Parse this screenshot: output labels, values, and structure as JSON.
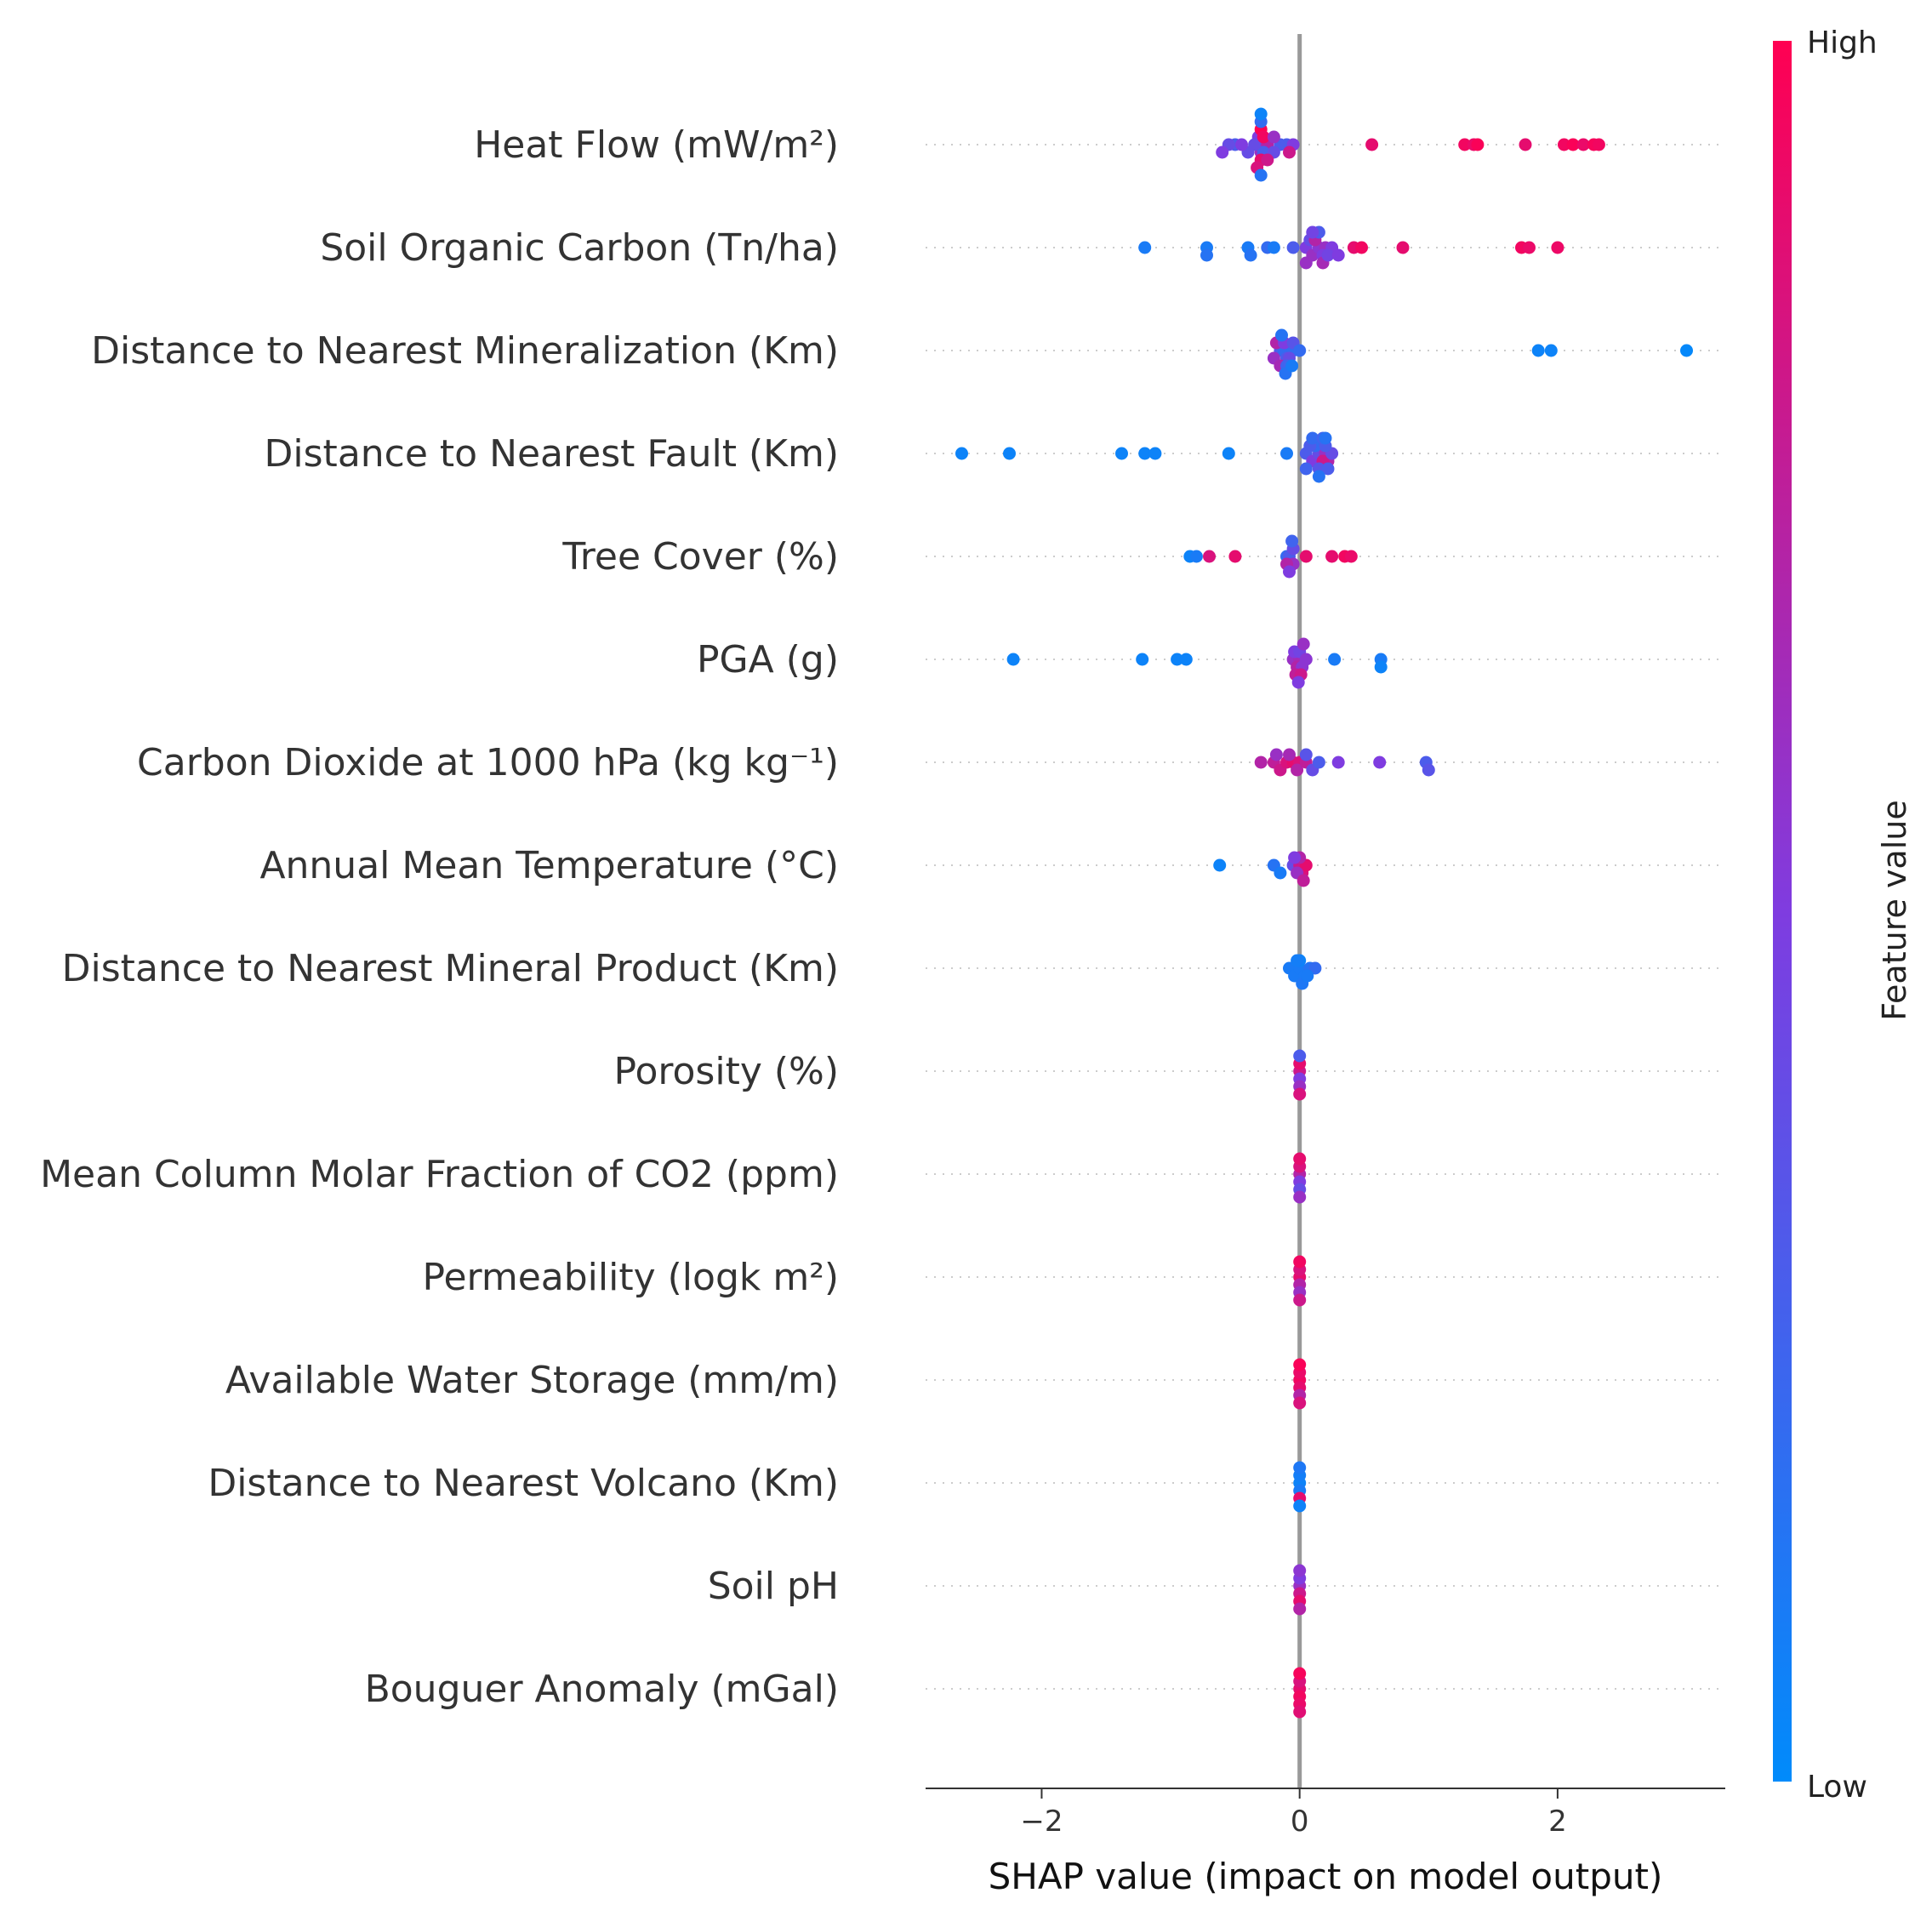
{
  "chart_data": {
    "type": "scatter",
    "subtype": "shap-beeswarm",
    "xlabel": "SHAP value (impact on model output)",
    "xlim": [
      -2.9,
      3.3
    ],
    "xticks": [
      -2,
      0,
      2
    ],
    "xtick_labels": [
      "−2",
      "0",
      "2"
    ],
    "grid": "dotted-row-lines",
    "features": [
      {
        "name": "Heat Flow (mW/m²)",
        "points": [
          [
            -0.3,
            0.5
          ],
          [
            -0.3,
            0.6
          ],
          [
            -0.25,
            0.7
          ],
          [
            -0.32,
            0.5
          ],
          [
            -0.28,
            0.3
          ],
          [
            -0.35,
            0.4
          ],
          [
            -0.4,
            0.4
          ],
          [
            -0.5,
            0.3
          ],
          [
            -0.55,
            0.4
          ],
          [
            -0.6,
            0.5
          ],
          [
            -0.45,
            0.5
          ],
          [
            -0.15,
            0.3
          ],
          [
            -0.1,
            0.3
          ],
          [
            -0.05,
            0.5
          ],
          [
            -0.08,
            0.8
          ],
          [
            -0.2,
            0.4
          ],
          [
            -0.3,
            0.9
          ],
          [
            -0.3,
            1.0
          ],
          [
            -0.28,
            0.95
          ],
          [
            -0.33,
            0.85
          ],
          [
            -0.3,
            0.2
          ],
          [
            -0.3,
            0.15
          ],
          [
            -0.3,
            0.05
          ],
          [
            -0.25,
            0.8
          ],
          [
            -0.2,
            0.6
          ],
          [
            0.56,
            0.9
          ],
          [
            1.28,
            0.95
          ],
          [
            1.35,
            0.92
          ],
          [
            1.38,
            0.98
          ],
          [
            1.75,
            0.9
          ],
          [
            2.05,
            0.95
          ],
          [
            2.12,
            0.98
          ],
          [
            2.2,
            0.92
          ],
          [
            2.28,
            0.97
          ],
          [
            2.32,
            0.95
          ]
        ]
      },
      {
        "name": "Soil Organic Carbon (Tn/ha)",
        "points": [
          [
            -1.2,
            0.1
          ],
          [
            -0.72,
            0.1
          ],
          [
            -0.72,
            0.15
          ],
          [
            -0.4,
            0.1
          ],
          [
            -0.38,
            0.15
          ],
          [
            -0.25,
            0.2
          ],
          [
            -0.2,
            0.1
          ],
          [
            -0.05,
            0.3
          ],
          [
            0.05,
            0.5
          ],
          [
            0.1,
            0.6
          ],
          [
            0.15,
            0.55
          ],
          [
            0.2,
            0.6
          ],
          [
            0.25,
            0.5
          ],
          [
            0.18,
            0.5
          ],
          [
            0.08,
            0.4
          ],
          [
            0.12,
            0.7
          ],
          [
            0.18,
            0.65
          ],
          [
            0.22,
            0.45
          ],
          [
            0.3,
            0.5
          ],
          [
            0.05,
            0.6
          ],
          [
            0.15,
            0.3
          ],
          [
            0.1,
            0.45
          ],
          [
            0.42,
            0.9
          ],
          [
            0.48,
            0.95
          ],
          [
            0.8,
            0.9
          ],
          [
            1.72,
            0.95
          ],
          [
            1.78,
            0.92
          ],
          [
            2.0,
            0.93
          ]
        ]
      },
      {
        "name": "Distance to Nearest Mineralization (Km)",
        "points": [
          [
            -0.15,
            0.3
          ],
          [
            -0.12,
            0.2
          ],
          [
            -0.1,
            0.3
          ],
          [
            -0.05,
            0.2
          ],
          [
            -0.08,
            0.4
          ],
          [
            -0.2,
            0.6
          ],
          [
            -0.18,
            0.7
          ],
          [
            -0.15,
            0.65
          ],
          [
            -0.12,
            0.5
          ],
          [
            -0.1,
            0.25
          ],
          [
            -0.05,
            0.35
          ],
          [
            0.0,
            0.2
          ],
          [
            -0.14,
            0.15
          ],
          [
            -0.11,
            0.15
          ],
          [
            -0.06,
            0.1
          ],
          [
            1.85,
            0.05
          ],
          [
            1.95,
            0.05
          ],
          [
            3.0,
            0.02
          ]
        ]
      },
      {
        "name": "Distance to Nearest Fault (Km)",
        "points": [
          [
            -2.62,
            0.05
          ],
          [
            -2.25,
            0.05
          ],
          [
            -1.38,
            0.05
          ],
          [
            -1.2,
            0.05
          ],
          [
            -1.12,
            0.05
          ],
          [
            -0.55,
            0.05
          ],
          [
            -0.1,
            0.1
          ],
          [
            0.05,
            0.3
          ],
          [
            0.1,
            0.5
          ],
          [
            0.15,
            0.4
          ],
          [
            0.2,
            0.6
          ],
          [
            0.22,
            0.7
          ],
          [
            0.18,
            0.8
          ],
          [
            0.12,
            0.2
          ],
          [
            0.08,
            0.3
          ],
          [
            0.25,
            0.4
          ],
          [
            0.05,
            0.25
          ],
          [
            0.15,
            0.35
          ],
          [
            0.2,
            0.3
          ],
          [
            0.1,
            0.2
          ],
          [
            0.18,
            0.25
          ],
          [
            0.22,
            0.3
          ],
          [
            0.15,
            0.15
          ],
          [
            0.2,
            0.15
          ]
        ]
      },
      {
        "name": "Tree Cover (%)",
        "points": [
          [
            -0.85,
            0.05
          ],
          [
            -0.8,
            0.1
          ],
          [
            -0.7,
            0.85
          ],
          [
            -0.5,
            0.9
          ],
          [
            -0.1,
            0.2
          ],
          [
            -0.08,
            0.3
          ],
          [
            -0.05,
            0.6
          ],
          [
            -0.1,
            0.7
          ],
          [
            -0.05,
            0.4
          ],
          [
            -0.08,
            0.5
          ],
          [
            -0.06,
            0.25
          ],
          [
            0.05,
            0.9
          ],
          [
            0.25,
            0.9
          ],
          [
            0.35,
            0.95
          ],
          [
            0.4,
            0.92
          ]
        ]
      },
      {
        "name": "PGA (g)",
        "points": [
          [
            -2.22,
            0.05
          ],
          [
            -1.22,
            0.05
          ],
          [
            -0.95,
            0.05
          ],
          [
            -0.88,
            0.05
          ],
          [
            -0.05,
            0.6
          ],
          [
            0.0,
            0.65
          ],
          [
            -0.02,
            0.7
          ],
          [
            0.02,
            0.55
          ],
          [
            -0.04,
            0.5
          ],
          [
            0.0,
            0.45
          ],
          [
            -0.03,
            0.75
          ],
          [
            0.01,
            0.8
          ],
          [
            0.03,
            0.6
          ],
          [
            0.05,
            0.55
          ],
          [
            -0.01,
            0.5
          ],
          [
            0.27,
            0.1
          ],
          [
            0.63,
            0.1
          ],
          [
            0.63,
            0.05
          ]
        ]
      },
      {
        "name": "Carbon Dioxide at 1000 hPa (kg kg⁻¹)",
        "points": [
          [
            -0.3,
            0.7
          ],
          [
            -0.2,
            0.75
          ],
          [
            -0.15,
            0.8
          ],
          [
            -0.1,
            0.85
          ],
          [
            -0.05,
            0.9
          ],
          [
            0.0,
            0.85
          ],
          [
            -0.02,
            0.7
          ],
          [
            0.05,
            0.75
          ],
          [
            -0.18,
            0.6
          ],
          [
            -0.08,
            0.65
          ],
          [
            0.1,
            0.4
          ],
          [
            0.15,
            0.3
          ],
          [
            0.05,
            0.35
          ],
          [
            0.3,
            0.5
          ],
          [
            0.62,
            0.5
          ],
          [
            0.98,
            0.3
          ],
          [
            1.0,
            0.35
          ]
        ]
      },
      {
        "name": "Annual Mean Temperature (°C)",
        "points": [
          [
            -0.62,
            0.05
          ],
          [
            -0.2,
            0.15
          ],
          [
            -0.15,
            0.1
          ],
          [
            -0.05,
            0.4
          ],
          [
            0.0,
            0.8
          ],
          [
            0.02,
            0.85
          ],
          [
            0.05,
            0.9
          ],
          [
            0.0,
            0.7
          ],
          [
            -0.02,
            0.6
          ],
          [
            0.03,
            0.75
          ],
          [
            -0.04,
            0.5
          ]
        ]
      },
      {
        "name": "Distance to Nearest Mineral Product (Km)",
        "points": [
          [
            -0.08,
            0.1
          ],
          [
            -0.04,
            0.1
          ],
          [
            0.0,
            0.1
          ],
          [
            0.04,
            0.1
          ],
          [
            0.08,
            0.15
          ],
          [
            0.12,
            0.2
          ],
          [
            0.0,
            0.05
          ],
          [
            -0.02,
            0.08
          ],
          [
            0.02,
            0.12
          ],
          [
            0.06,
            0.1
          ]
        ]
      },
      {
        "name": "Porosity (%)",
        "points": [
          [
            0.0,
            0.8
          ],
          [
            0.0,
            0.5
          ],
          [
            0.0,
            0.9
          ],
          [
            0.0,
            0.6
          ],
          [
            0.0,
            0.3
          ],
          [
            0.0,
            0.85
          ]
        ]
      },
      {
        "name": "Mean Column Molar Fraction of CO2 (ppm)",
        "points": [
          [
            0.0,
            0.7
          ],
          [
            0.0,
            0.5
          ],
          [
            0.0,
            0.85
          ],
          [
            0.0,
            0.4
          ],
          [
            0.0,
            0.9
          ],
          [
            0.0,
            0.6
          ]
        ]
      },
      {
        "name": "Permeability (logk m²)",
        "points": [
          [
            0.0,
            0.9
          ],
          [
            0.0,
            0.7
          ],
          [
            0.0,
            0.85
          ],
          [
            0.0,
            0.6
          ],
          [
            0.0,
            0.95
          ],
          [
            0.0,
            0.8
          ]
        ]
      },
      {
        "name": "Available Water Storage (mm/m)",
        "points": [
          [
            0.0,
            0.95
          ],
          [
            0.0,
            0.9
          ],
          [
            0.0,
            0.92
          ],
          [
            0.0,
            0.7
          ],
          [
            0.0,
            0.98
          ],
          [
            0.0,
            0.85
          ]
        ]
      },
      {
        "name": "Distance to Nearest Volcano (Km)",
        "points": [
          [
            0.0,
            0.05
          ],
          [
            0.0,
            0.1
          ],
          [
            0.0,
            0.08
          ],
          [
            0.0,
            0.9
          ],
          [
            0.0,
            0.12
          ],
          [
            0.0,
            0.06
          ]
        ]
      },
      {
        "name": "Soil pH",
        "points": [
          [
            0.0,
            0.6
          ],
          [
            0.0,
            0.8
          ],
          [
            0.0,
            0.5
          ],
          [
            0.0,
            0.9
          ],
          [
            0.0,
            0.55
          ],
          [
            0.0,
            0.7
          ]
        ]
      },
      {
        "name": "Bouguer Anomaly (mGal)",
        "points": [
          [
            0.0,
            0.9
          ],
          [
            0.0,
            0.95
          ],
          [
            0.0,
            0.85
          ],
          [
            0.0,
            0.92
          ],
          [
            0.0,
            0.97
          ],
          [
            0.0,
            0.88
          ]
        ]
      }
    ],
    "colorbar": {
      "title": "Feature value",
      "high_label": "High",
      "low_label": "Low",
      "low_color": "#008bfb",
      "mid_color": "#7f3ce0",
      "high_color": "#ff0052"
    }
  }
}
